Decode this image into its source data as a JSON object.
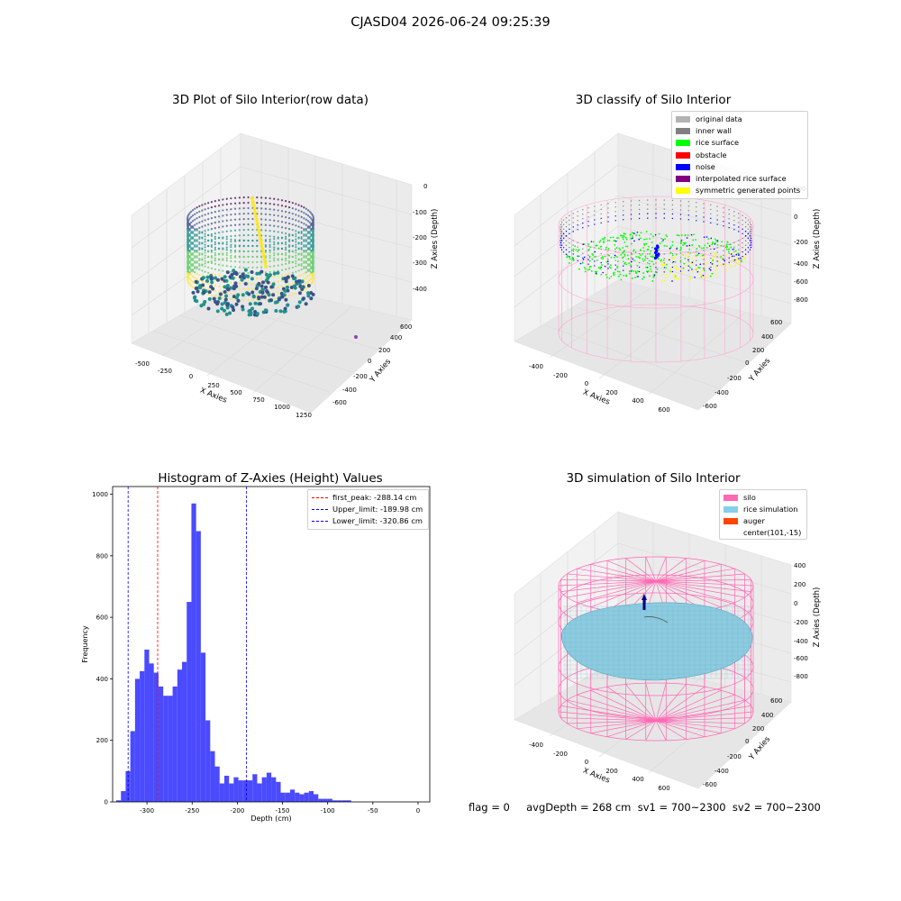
{
  "suptitle": "CJASD04 2026-06-24 09:25:39",
  "chart_data": [
    {
      "type": "scatter3d",
      "title": "3D Plot of Silo Interior(row data)",
      "xlabel": "X Axies",
      "ylabel": "Y Axies",
      "zlabel": "Z Axies (Depth)",
      "xticks": [
        "-500",
        "-250",
        "0",
        "250",
        "500",
        "750",
        "1000",
        "1250"
      ],
      "yticks": [
        "-600",
        "-400",
        "-200",
        "0",
        "200",
        "400",
        "600"
      ],
      "zticks": [
        "0",
        "-100",
        "-200",
        "-300",
        "-400"
      ],
      "colormap": "viridis"
    },
    {
      "type": "scatter3d",
      "title": "3D classify of Silo Interior",
      "xlabel": "X Axies",
      "ylabel": "Y Axies",
      "zlabel": "Z Axies (Depth)",
      "xticks": [
        "-400",
        "-200",
        "0",
        "200",
        "400",
        "600"
      ],
      "yticks": [
        "-600",
        "-400",
        "-200",
        "0",
        "200",
        "400",
        "600"
      ],
      "zticks": [
        "200",
        "0",
        "-200",
        "-400",
        "-600",
        "-800"
      ],
      "legend_position": "top-right",
      "legend": [
        {
          "label": "original data",
          "color": "#b3b3b3"
        },
        {
          "label": "inner wall",
          "color": "#808080"
        },
        {
          "label": "rice surface",
          "color": "#00ff00"
        },
        {
          "label": "obstacle",
          "color": "#ff0000"
        },
        {
          "label": "noise",
          "color": "#0000ff"
        },
        {
          "label": "interpolated rice surface",
          "color": "#800080"
        },
        {
          "label": "symmetric generated points",
          "color": "#ffff00"
        }
      ]
    },
    {
      "type": "bar",
      "title": "Histogram of Z-Axies (Height) Values",
      "xlabel": "Depth (cm)",
      "ylabel": "Frequency",
      "xlim": [
        -338,
        13
      ],
      "ylim": [
        0,
        1025
      ],
      "xticks": [
        -300,
        -250,
        -200,
        -150,
        -100,
        -50,
        0
      ],
      "yticks": [
        0,
        200,
        400,
        600,
        800,
        1000
      ],
      "bar_color": "#4a4aff",
      "bin_start": -334,
      "bin_width": 5.2,
      "values": [
        5,
        35,
        100,
        230,
        400,
        425,
        495,
        450,
        420,
        375,
        345,
        345,
        375,
        430,
        455,
        650,
        970,
        880,
        485,
        265,
        165,
        115,
        60,
        85,
        60,
        80,
        70,
        70,
        70,
        90,
        60,
        80,
        95,
        80,
        65,
        30,
        30,
        40,
        30,
        25,
        30,
        35,
        25,
        10,
        10,
        10,
        5,
        5,
        5,
        5
      ],
      "vlines": [
        {
          "label": "first_peak: -288.14 cm",
          "value": -288.14,
          "color": "#ff0000"
        },
        {
          "label": "Upper_limit: -189.98 cm",
          "value": -189.98,
          "color": "#0000ff"
        },
        {
          "label": "Lower_limit: -320.86 cm",
          "value": -320.86,
          "color": "#0000ff"
        }
      ],
      "legend_position": "top-right"
    },
    {
      "type": "surface3d",
      "title": "3D simulation of Silo Interior",
      "xlabel": "X Axies",
      "ylabel": "Y Axies",
      "zlabel": "Z Axies (Depth)",
      "xticks": [
        "-400",
        "-200",
        "0",
        "200",
        "400",
        "600"
      ],
      "yticks": [
        "-600",
        "-400",
        "-200",
        "0",
        "200",
        "400",
        "600"
      ],
      "zticks": [
        "400",
        "200",
        "0",
        "-200",
        "-400",
        "-600",
        "-800"
      ],
      "legend_position": "top-right",
      "legend": [
        {
          "label": "silo",
          "color": "#ff69b4"
        },
        {
          "label": "rice simulation",
          "color": "#87ceeb"
        },
        {
          "label": "auger",
          "color": "#ff4500"
        },
        {
          "label": "center(101,-15)",
          "color": ""
        }
      ]
    }
  ],
  "footer": "flag = 0     avgDepth = 268 cm  sv1 = 700~2300  sv2 = 700~2300"
}
